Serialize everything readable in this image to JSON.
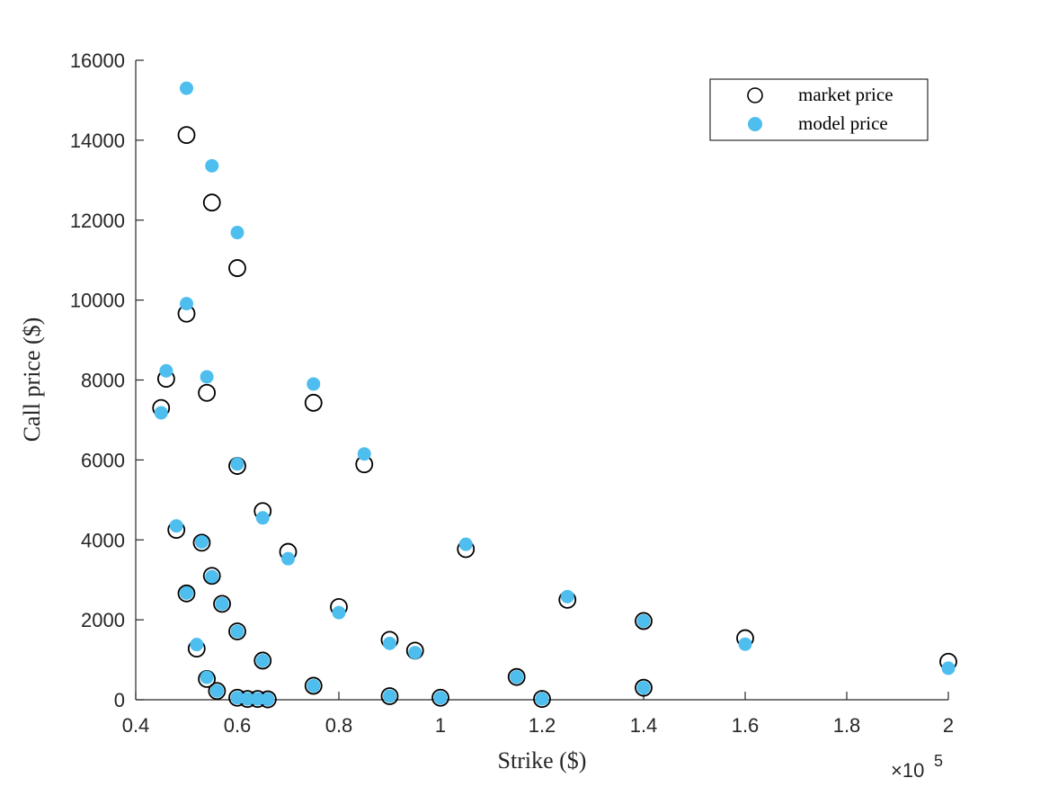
{
  "chart_data": {
    "type": "scatter",
    "xlabel": "Strike ($)",
    "ylabel": "Call price ($)",
    "xlim": [
      0.4,
      2
    ],
    "ylim": [
      0,
      16000
    ],
    "x_scale_multiplier": "×10",
    "x_scale_exponent": "5",
    "x_ticks": [
      "0.4",
      "0.6",
      "0.8",
      "1",
      "1.2",
      "1.4",
      "1.6",
      "1.8",
      "2"
    ],
    "y_ticks": [
      "0",
      "2000",
      "4000",
      "6000",
      "8000",
      "10000",
      "12000",
      "14000",
      "16000"
    ],
    "legend_position": "top-right",
    "grid": false,
    "colors": {
      "market": "#000000",
      "model": "#4DBEEE",
      "axis": "#262626"
    },
    "series": [
      {
        "name": "market price",
        "marker": "open-circle",
        "points": [
          [
            0.45,
            7300
          ],
          [
            0.46,
            8030
          ],
          [
            0.48,
            4250
          ],
          [
            0.5,
            14130
          ],
          [
            0.5,
            9660
          ],
          [
            0.5,
            2660
          ],
          [
            0.52,
            1280
          ],
          [
            0.53,
            3930
          ],
          [
            0.54,
            7680
          ],
          [
            0.54,
            520
          ],
          [
            0.55,
            12440
          ],
          [
            0.55,
            3100
          ],
          [
            0.56,
            220
          ],
          [
            0.57,
            2400
          ],
          [
            0.6,
            10800
          ],
          [
            0.6,
            5850
          ],
          [
            0.6,
            1710
          ],
          [
            0.6,
            50
          ],
          [
            0.62,
            20
          ],
          [
            0.64,
            20
          ],
          [
            0.65,
            4720
          ],
          [
            0.65,
            980
          ],
          [
            0.66,
            10
          ],
          [
            0.7,
            3700
          ],
          [
            0.75,
            7430
          ],
          [
            0.75,
            350
          ],
          [
            0.8,
            2320
          ],
          [
            0.85,
            5890
          ],
          [
            0.9,
            1500
          ],
          [
            0.9,
            90
          ],
          [
            0.95,
            1230
          ],
          [
            1.0,
            50
          ],
          [
            1.05,
            3770
          ],
          [
            1.15,
            570
          ],
          [
            1.2,
            20
          ],
          [
            1.25,
            2500
          ],
          [
            1.4,
            1970
          ],
          [
            1.4,
            300
          ],
          [
            1.6,
            1540
          ],
          [
            2.0,
            950
          ]
        ]
      },
      {
        "name": "model price",
        "marker": "filled-circle",
        "points": [
          [
            0.45,
            7180
          ],
          [
            0.46,
            8230
          ],
          [
            0.48,
            4350
          ],
          [
            0.5,
            15300
          ],
          [
            0.5,
            9910
          ],
          [
            0.5,
            2670
          ],
          [
            0.52,
            1380
          ],
          [
            0.53,
            3950
          ],
          [
            0.54,
            8080
          ],
          [
            0.54,
            560
          ],
          [
            0.55,
            13360
          ],
          [
            0.55,
            3080
          ],
          [
            0.56,
            220
          ],
          [
            0.57,
            2400
          ],
          [
            0.6,
            11690
          ],
          [
            0.6,
            5900
          ],
          [
            0.6,
            1710
          ],
          [
            0.6,
            50
          ],
          [
            0.62,
            20
          ],
          [
            0.64,
            20
          ],
          [
            0.65,
            4550
          ],
          [
            0.65,
            980
          ],
          [
            0.66,
            10
          ],
          [
            0.7,
            3530
          ],
          [
            0.75,
            7900
          ],
          [
            0.75,
            350
          ],
          [
            0.8,
            2180
          ],
          [
            0.85,
            6150
          ],
          [
            0.9,
            1410
          ],
          [
            0.9,
            90
          ],
          [
            0.95,
            1180
          ],
          [
            1.0,
            50
          ],
          [
            1.05,
            3890
          ],
          [
            1.15,
            570
          ],
          [
            1.2,
            20
          ],
          [
            1.25,
            2580
          ],
          [
            1.4,
            1970
          ],
          [
            1.4,
            300
          ],
          [
            1.6,
            1390
          ],
          [
            2.0,
            790
          ]
        ]
      }
    ]
  }
}
